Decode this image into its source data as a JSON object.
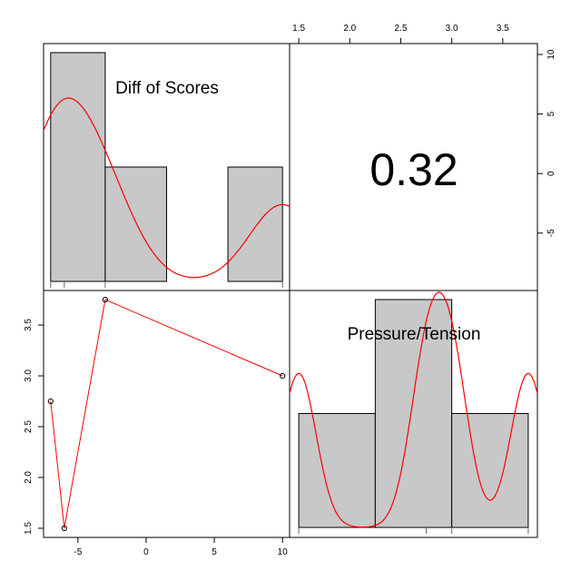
{
  "chart_data": {
    "type": "pairs",
    "variables": [
      "Diff of Scores",
      "Pressure/Tension"
    ],
    "correlation_text": "0.32",
    "observations": {
      "diff_of_scores": [
        -7,
        -6,
        -3,
        10
      ],
      "pressure_tension": [
        2.75,
        1.5,
        3.75,
        3.0
      ]
    },
    "hist_diff": {
      "bins": [
        [
          -7,
          -3
        ],
        [
          -3,
          1.5
        ],
        [
          1.5,
          6
        ],
        [
          6,
          10
        ]
      ],
      "heights": [
        2,
        1,
        0,
        1
      ]
    },
    "hist_pressure": {
      "bins": [
        [
          1.5,
          2.25
        ],
        [
          2.25,
          3.0
        ],
        [
          3.0,
          3.75
        ]
      ],
      "heights": [
        1,
        2,
        1
      ]
    },
    "ticks": {
      "diff": [
        "-5",
        "0",
        "5",
        "10"
      ],
      "diff_values": [
        -5,
        0,
        5,
        10
      ],
      "pressure": [
        "1.5",
        "2.0",
        "2.5",
        "3.0",
        "3.5"
      ],
      "pressure_values": [
        1.5,
        2.0,
        2.5,
        3.0,
        3.5
      ]
    },
    "colors": {
      "bar_fill": "#c8c8c8",
      "density": "#ff0000",
      "smooth": "#ff0000",
      "frame": "#000000"
    }
  }
}
